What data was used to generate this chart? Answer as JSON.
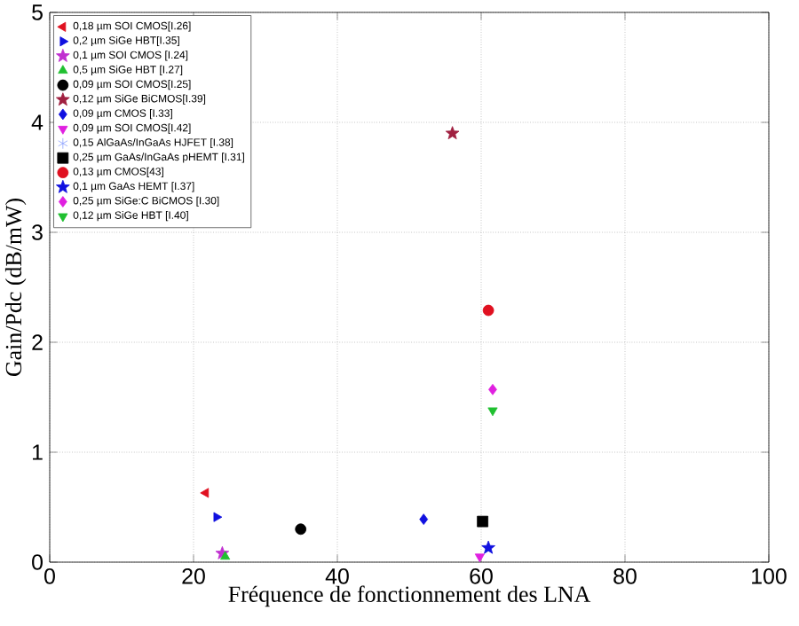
{
  "chart_data": {
    "type": "scatter",
    "xlabel": "Fréquence de fonctionnement des LNA",
    "ylabel": "Gain/Pdc (dB/mW)",
    "xlim": [
      0,
      100
    ],
    "ylim": [
      0,
      5
    ],
    "xticks": [
      0,
      20,
      40,
      60,
      80,
      100
    ],
    "yticks": [
      0,
      1,
      2,
      3,
      4,
      5
    ],
    "grid": true,
    "legend": "top left",
    "series": [
      {
        "name": "0,18 µm SOI CMOS[I.26]",
        "color": "#e01020",
        "marker": "triangle-left",
        "x": [
          21.7
        ],
        "values": [
          0.63
        ]
      },
      {
        "name": "0,2 µm SiGe HBT[I.35]",
        "color": "#1010e0",
        "marker": "triangle-right",
        "x": [
          23.2
        ],
        "values": [
          0.41
        ]
      },
      {
        "name": "0,1 µm SOI CMOS [I.24]",
        "color": "#c030d0",
        "marker": "star",
        "x": [
          24.0
        ],
        "values": [
          0.08
        ]
      },
      {
        "name": "0,5 µm SiGe HBT [I.27]",
        "color": "#20c030",
        "marker": "triangle",
        "x": [
          24.4
        ],
        "values": [
          0.05
        ]
      },
      {
        "name": "0,09 µm SOI CMOS[I.25]",
        "color": "#000000",
        "marker": "circle",
        "x": [
          34.9
        ],
        "values": [
          0.3
        ]
      },
      {
        "name": "0,12 µm SiGe BiCMOS[I.39]",
        "color": "#a02040",
        "marker": "star",
        "x": [
          56
        ],
        "values": [
          3.9
        ]
      },
      {
        "name": "0,09 µm CMOS [I.33]",
        "color": "#1010e0",
        "marker": "diamond",
        "x": [
          52.0
        ],
        "values": [
          0.39
        ]
      },
      {
        "name": "0,09 µm SOI CMOS[I.42]",
        "color": "#e020e0",
        "marker": "triangle-down",
        "x": [
          59.8
        ],
        "values": [
          0.05
        ]
      },
      {
        "name": "0,15 AlGaAs/InGaAs HJFET [I.38]",
        "color": "#8aa0ff",
        "marker": "asterisk",
        "x": [
          null
        ],
        "values": [
          null
        ]
      },
      {
        "name": "0,25 µm GaAs/InGaAs pHEMT [I.31]",
        "color": "#000000",
        "marker": "square",
        "x": [
          60.2
        ],
        "values": [
          0.37
        ]
      },
      {
        "name": "0,13 µm CMOS[43]",
        "color": "#e01020",
        "marker": "circle",
        "x": [
          61.0
        ],
        "values": [
          2.29
        ]
      },
      {
        "name": "0,1 µm GaAs HEMT [I.37]",
        "color": "#1010e0",
        "marker": "star",
        "x": [
          61.0
        ],
        "values": [
          0.13
        ]
      },
      {
        "name": "0,25 µm SiGe:C BiCMOS [I.30]",
        "color": "#e020e0",
        "marker": "diamond",
        "x": [
          61.6
        ],
        "values": [
          1.57
        ]
      },
      {
        "name": "0,12 µm SiGe HBT [I.40]",
        "color": "#20c030",
        "marker": "triangle-down",
        "x": [
          61.6
        ],
        "values": [
          1.38
        ]
      }
    ]
  }
}
